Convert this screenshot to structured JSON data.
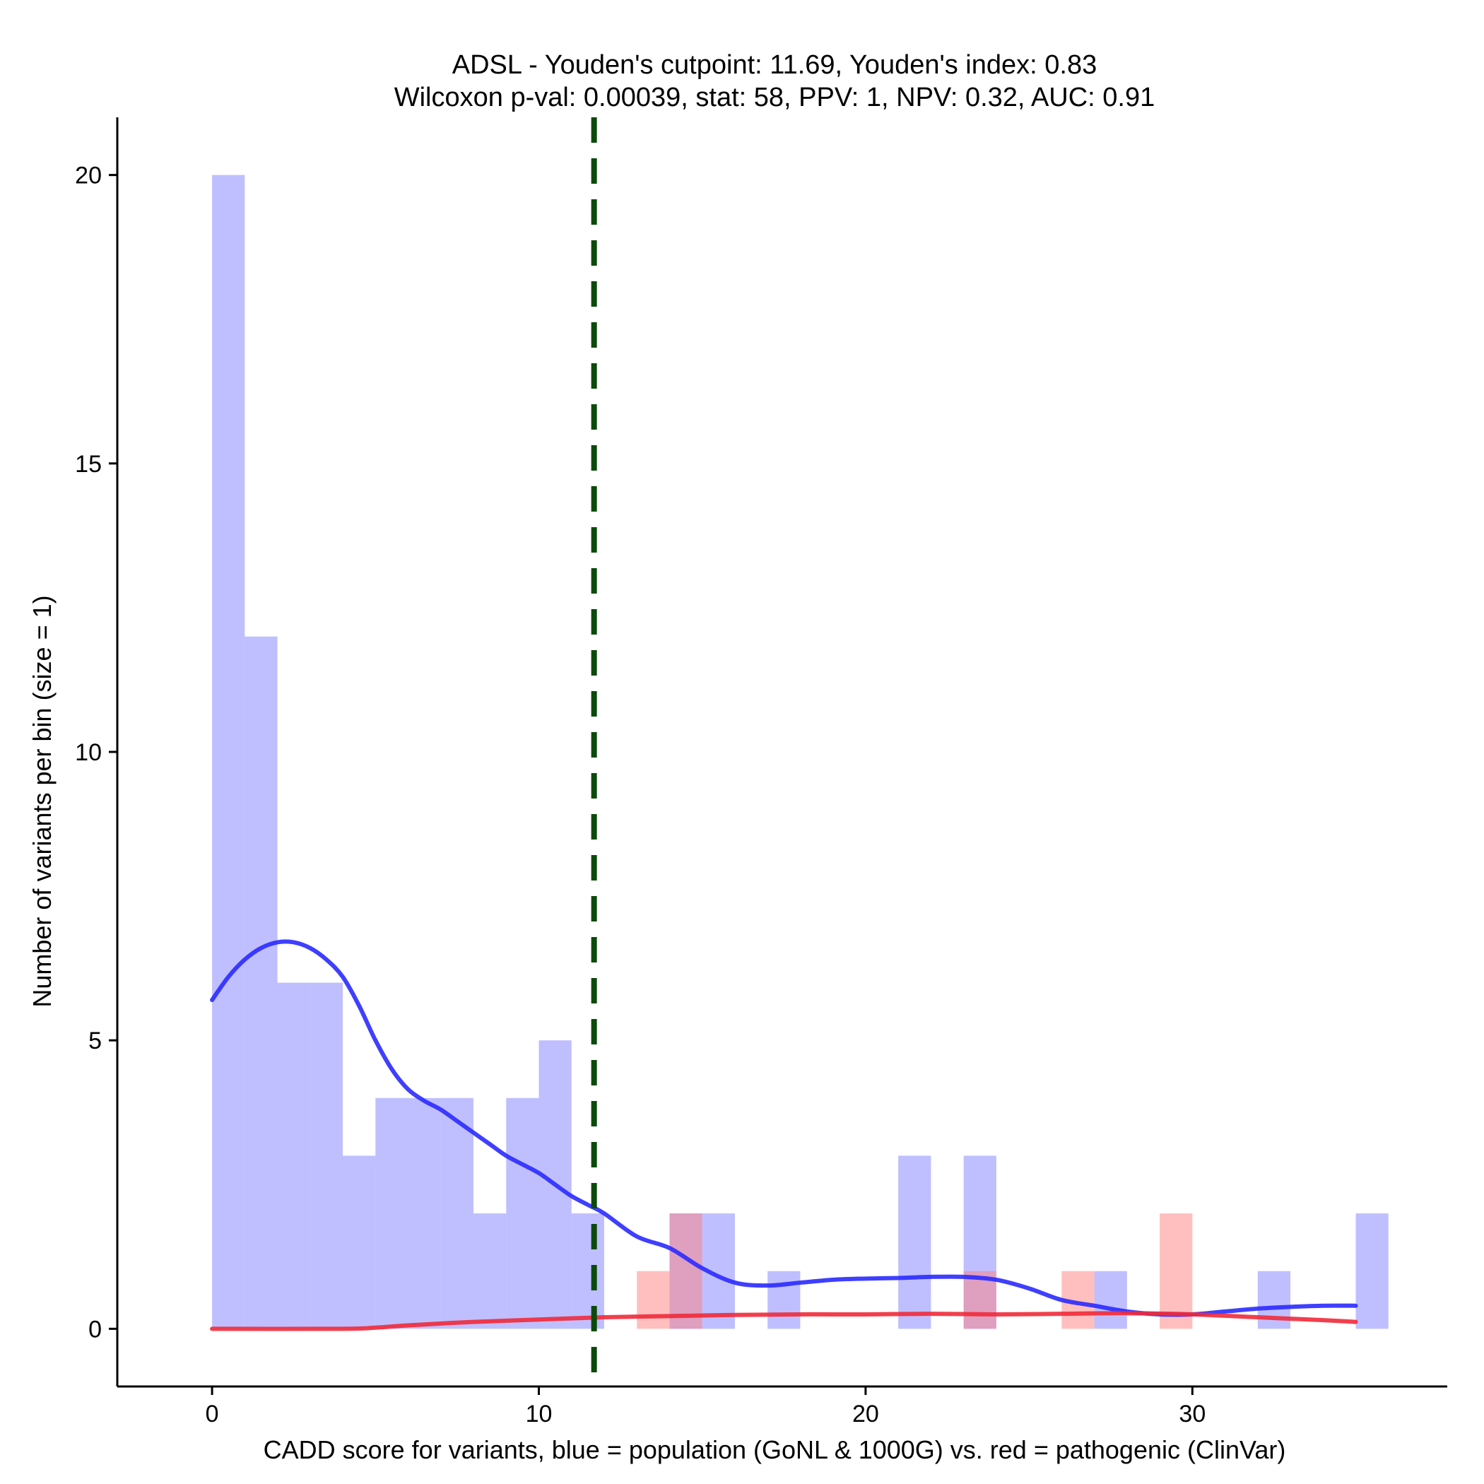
{
  "chart_data": {
    "type": "histogram",
    "title_line1": "ADSL - Youden's cutpoint: 11.69, Youden's index: 0.83",
    "title_line2": "Wilcoxon p-val: 0.00039, stat: 58, PPV: 1, NPV: 0.32, AUC: 0.91",
    "xlabel": "CADD score for variants, blue = population (GoNL & 1000G) vs. red = pathogenic (ClinVar)",
    "ylabel": "Number of variants per bin (size = 1)",
    "xlim": [
      -2.9,
      37.8
    ],
    "ylim": [
      -1,
      21
    ],
    "x_ticks": [
      0,
      10,
      20,
      30
    ],
    "y_ticks": [
      0,
      5,
      10,
      15,
      20
    ],
    "bin_size": 1,
    "cutpoint": 11.69,
    "colors": {
      "population": "#8080ff",
      "pathogenic": "#ff8080",
      "population_line": "#2a2aff",
      "pathogenic_line": "#f02a3a",
      "cutpoint": "#0a4a0a",
      "axis": "#000000"
    },
    "series": [
      {
        "name": "population (GoNL & 1000G)",
        "bins": [
          {
            "start": 0,
            "count": 20
          },
          {
            "start": 1,
            "count": 12
          },
          {
            "start": 2,
            "count": 6
          },
          {
            "start": 3,
            "count": 6
          },
          {
            "start": 4,
            "count": 3
          },
          {
            "start": 5,
            "count": 4
          },
          {
            "start": 6,
            "count": 4
          },
          {
            "start": 7,
            "count": 4
          },
          {
            "start": 8,
            "count": 2
          },
          {
            "start": 9,
            "count": 4
          },
          {
            "start": 10,
            "count": 5
          },
          {
            "start": 11,
            "count": 2
          },
          {
            "start": 14,
            "count": 2
          },
          {
            "start": 15,
            "count": 2
          },
          {
            "start": 17,
            "count": 1
          },
          {
            "start": 21,
            "count": 3
          },
          {
            "start": 23,
            "count": 3
          },
          {
            "start": 27,
            "count": 1
          },
          {
            "start": 32,
            "count": 1
          },
          {
            "start": 35,
            "count": 2
          }
        ],
        "density_x": [
          0,
          0.5,
          1,
          1.5,
          2,
          2.5,
          3,
          3.5,
          4,
          4.5,
          5,
          5.5,
          6,
          6.5,
          7,
          7.5,
          8,
          8.5,
          9,
          9.5,
          10,
          10.5,
          11,
          11.5,
          12,
          13,
          14,
          15,
          16,
          17,
          18,
          19,
          20,
          21,
          22,
          23,
          24,
          25,
          26,
          27,
          28,
          29,
          30,
          31,
          32,
          33,
          34,
          35
        ],
        "density_y": [
          5.7,
          6.1,
          6.4,
          6.6,
          6.7,
          6.7,
          6.6,
          6.4,
          6.1,
          5.6,
          5.0,
          4.5,
          4.15,
          3.95,
          3.8,
          3.6,
          3.4,
          3.2,
          3.0,
          2.85,
          2.7,
          2.5,
          2.3,
          2.15,
          2.0,
          1.6,
          1.4,
          1.05,
          0.8,
          0.75,
          0.8,
          0.85,
          0.87,
          0.88,
          0.9,
          0.9,
          0.85,
          0.7,
          0.5,
          0.4,
          0.3,
          0.25,
          0.25,
          0.3,
          0.35,
          0.38,
          0.4,
          0.4
        ]
      },
      {
        "name": "pathogenic (ClinVar)",
        "bins": [
          {
            "start": 13,
            "count": 1
          },
          {
            "start": 14,
            "count": 2
          },
          {
            "start": 23,
            "count": 1
          },
          {
            "start": 26,
            "count": 1
          },
          {
            "start": 29,
            "count": 2
          }
        ],
        "density_x": [
          0,
          4,
          5,
          6,
          8,
          10,
          12,
          14,
          16,
          18,
          20,
          22,
          24,
          26,
          28,
          30,
          32,
          34,
          35
        ],
        "density_y": [
          0,
          0,
          0.02,
          0.06,
          0.12,
          0.16,
          0.2,
          0.22,
          0.24,
          0.25,
          0.25,
          0.26,
          0.25,
          0.26,
          0.27,
          0.25,
          0.2,
          0.15,
          0.12
        ]
      }
    ]
  }
}
